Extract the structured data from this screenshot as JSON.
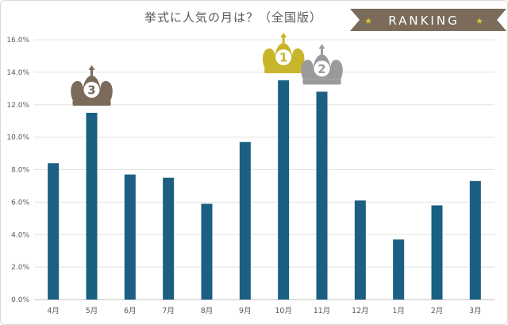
{
  "chart_data": {
    "type": "bar",
    "title": "挙式に人気の月は？（全国版）",
    "categories": [
      "4月",
      "5月",
      "6月",
      "7月",
      "8月",
      "9月",
      "10月",
      "11月",
      "12月",
      "1月",
      "2月",
      "3月"
    ],
    "values": [
      8.4,
      11.5,
      7.7,
      7.5,
      5.9,
      9.7,
      13.5,
      12.8,
      6.1,
      3.7,
      5.8,
      7.3
    ],
    "ylim": [
      0,
      16
    ],
    "yticks": [
      "0.0%",
      "2.0%",
      "4.0%",
      "6.0%",
      "8.0%",
      "10.0%",
      "12.0%",
      "14.0%",
      "16.0%"
    ],
    "ytick_values": [
      0,
      2,
      4,
      6,
      8,
      10,
      12,
      14,
      16
    ],
    "grid": true,
    "bar_color": "#1b5f82"
  },
  "badge": {
    "label": "RANKING",
    "color": "#7a6b5a",
    "star_color": "#d8c63a"
  },
  "ranking": [
    {
      "rank": "1",
      "category": "10月",
      "color": "#c8b52a"
    },
    {
      "rank": "2",
      "category": "11月",
      "color": "#9a9a9a"
    },
    {
      "rank": "3",
      "category": "5月",
      "color": "#7a6b5a"
    }
  ]
}
